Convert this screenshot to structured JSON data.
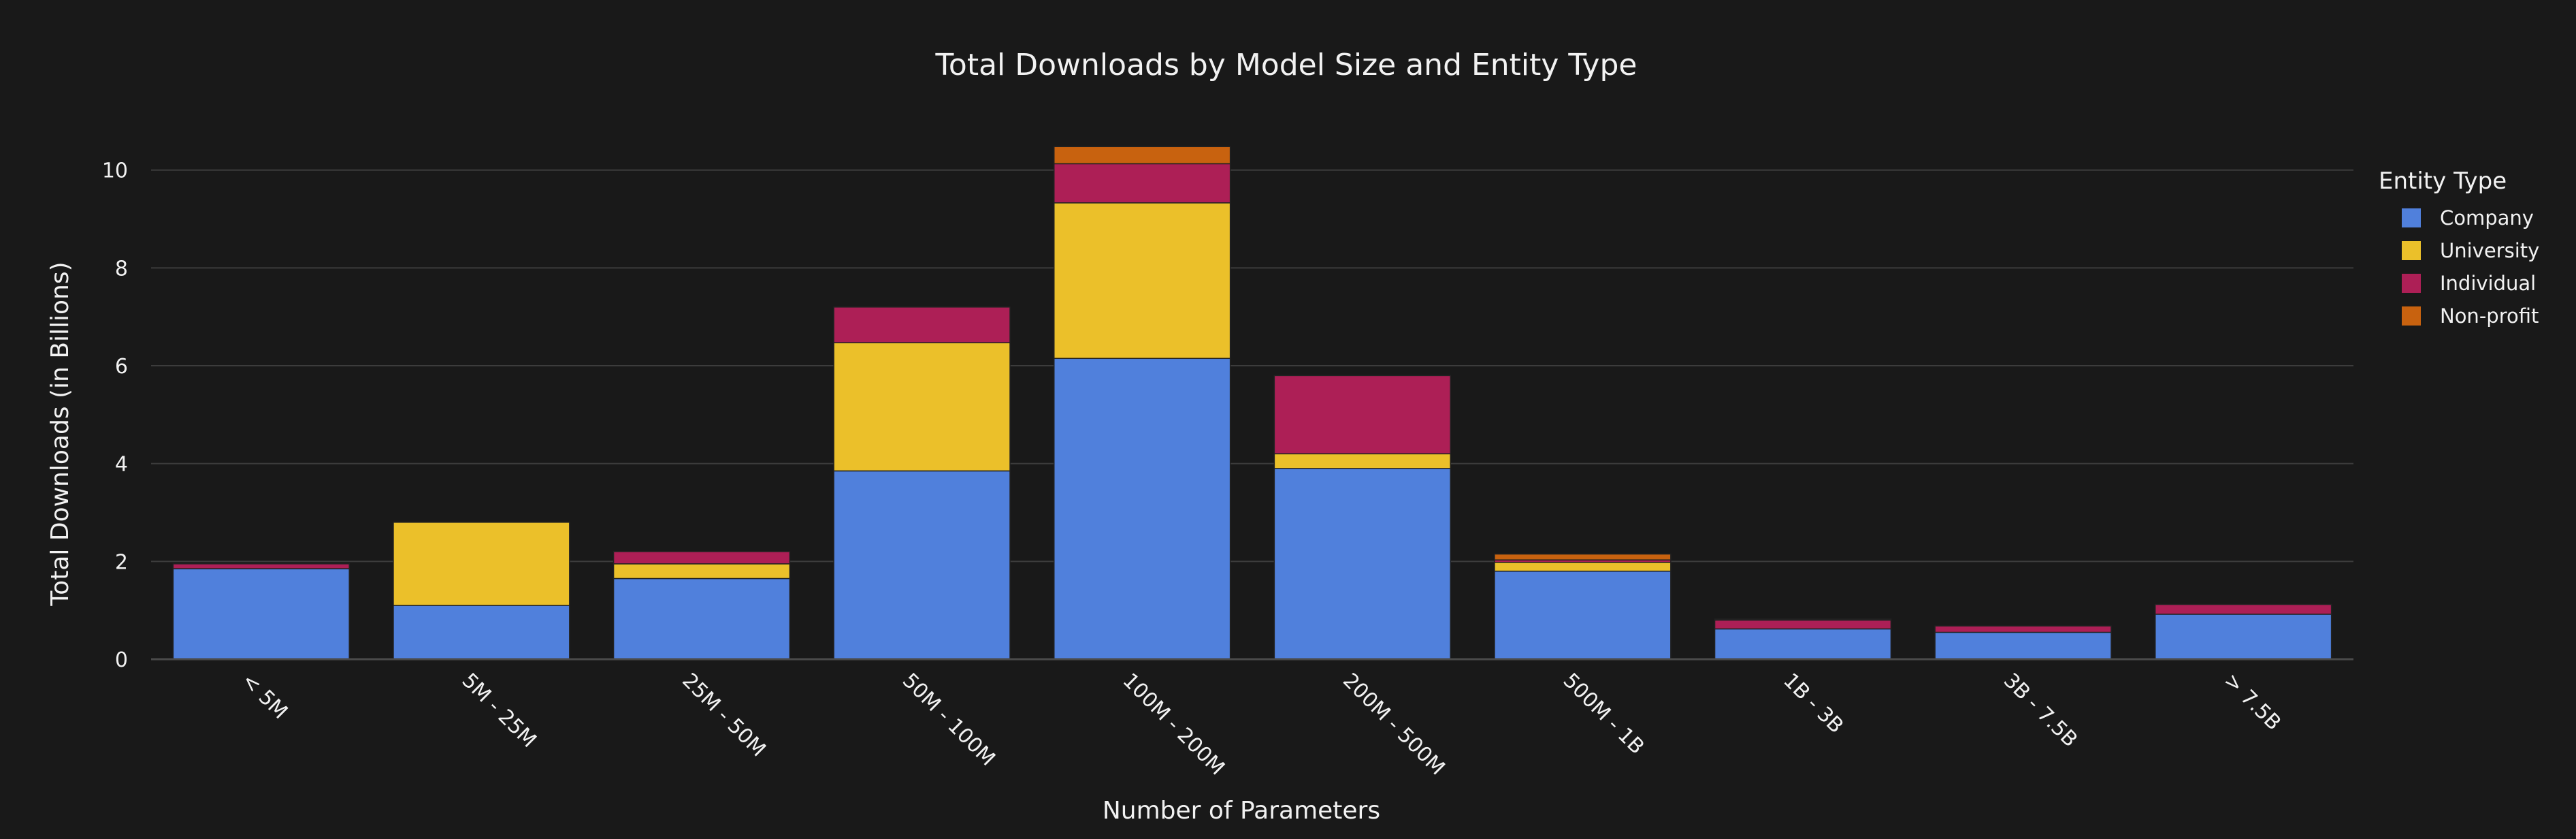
{
  "chart_data": {
    "type": "bar",
    "stacked": true,
    "title": "Total Downloads by Model Size and Entity Type",
    "xlabel": "Number of Parameters",
    "ylabel": "Total Downloads (in Billions)",
    "categories": [
      "< 5M",
      "5M - 25M",
      "25M - 50M",
      "50M - 100M",
      "100M - 200M",
      "200M - 500M",
      "500M - 1B",
      "1B - 3B",
      "3B - 7.5B",
      "> 7.5B"
    ],
    "yticks": [
      0,
      2,
      4,
      6,
      8,
      10
    ],
    "ylim": [
      0,
      11.5
    ],
    "grid": true,
    "legend_position": "right",
    "legend_title": "Entity Type",
    "series": [
      {
        "name": "Company",
        "color": "#5080dc",
        "values": [
          1.85,
          1.1,
          1.65,
          3.85,
          6.15,
          3.9,
          1.8,
          0.62,
          0.55,
          0.92
        ]
      },
      {
        "name": "University",
        "color": "#ebc02a",
        "values": [
          0.0,
          1.7,
          0.3,
          2.62,
          3.18,
          0.3,
          0.18,
          0.0,
          0.0,
          0.0
        ]
      },
      {
        "name": "Individual",
        "color": "#ad1f56",
        "values": [
          0.1,
          0.0,
          0.25,
          0.73,
          0.8,
          1.6,
          0.05,
          0.18,
          0.13,
          0.2
        ]
      },
      {
        "name": "Non-profit",
        "color": "#c8620f",
        "values": [
          0.0,
          0.0,
          0.0,
          0.0,
          0.35,
          0.0,
          0.12,
          0.02,
          0.0,
          0.0
        ]
      }
    ]
  }
}
